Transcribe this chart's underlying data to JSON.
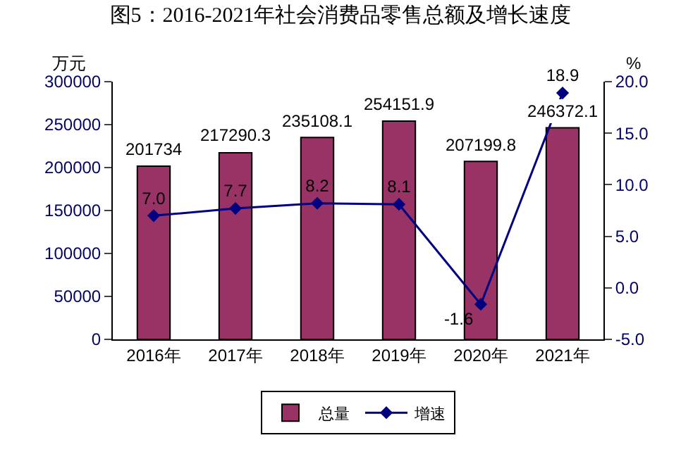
{
  "chart_data": {
    "type": "bar",
    "title": "图5：2016-2021年社会消费品零售总额及增长速度",
    "ylabel": "万元",
    "y2label": "%",
    "categories": [
      "2016年",
      "2017年",
      "2018年",
      "2019年",
      "2020年",
      "2021年"
    ],
    "series": [
      {
        "name": "总量",
        "color": "#993366",
        "values": [
          201734,
          217290.3,
          235108.1,
          254151.9,
          207199.8,
          246372.1
        ]
      },
      {
        "name": "增速",
        "type": "line",
        "axis": "y2",
        "color": "#000080",
        "marker": "diamond",
        "values": [
          7.0,
          7.7,
          8.2,
          8.1,
          -1.6,
          18.9
        ],
        "value_labels": [
          "7.0",
          "7.7",
          "8.2",
          "8.1",
          "-1.6",
          "18.9"
        ]
      }
    ],
    "data_labels": true,
    "ylim": [
      0,
      300000
    ],
    "yticks": [
      0,
      50000,
      100000,
      150000,
      200000,
      250000,
      300000
    ],
    "y2lim": [
      -5,
      20
    ],
    "y2ticks": [
      {
        "value": -5,
        "label": "-5.0"
      },
      {
        "value": 0,
        "label": "0.0"
      },
      {
        "value": 5,
        "label": "5.0"
      },
      {
        "value": 10,
        "label": "10.0"
      },
      {
        "value": 15,
        "label": "15.0"
      },
      {
        "value": 20,
        "label": "20.0"
      }
    ],
    "legend": "bottom"
  }
}
